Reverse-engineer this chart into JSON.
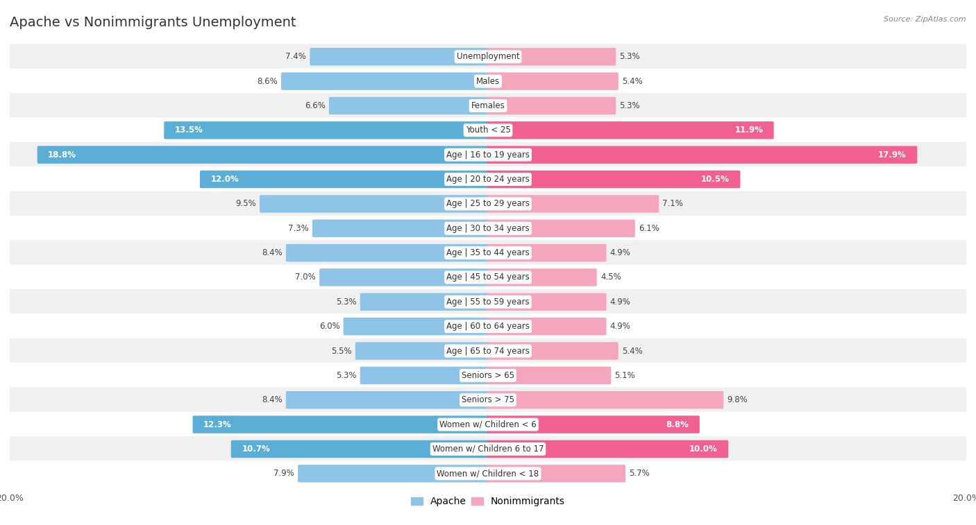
{
  "title": "Apache vs Nonimmigrants Unemployment",
  "source": "Source: ZipAtlas.com",
  "categories": [
    "Unemployment",
    "Males",
    "Females",
    "Youth < 25",
    "Age | 16 to 19 years",
    "Age | 20 to 24 years",
    "Age | 25 to 29 years",
    "Age | 30 to 34 years",
    "Age | 35 to 44 years",
    "Age | 45 to 54 years",
    "Age | 55 to 59 years",
    "Age | 60 to 64 years",
    "Age | 65 to 74 years",
    "Seniors > 65",
    "Seniors > 75",
    "Women w/ Children < 6",
    "Women w/ Children 6 to 17",
    "Women w/ Children < 18"
  ],
  "apache_values": [
    7.4,
    8.6,
    6.6,
    13.5,
    18.8,
    12.0,
    9.5,
    7.3,
    8.4,
    7.0,
    5.3,
    6.0,
    5.5,
    5.3,
    8.4,
    12.3,
    10.7,
    7.9
  ],
  "nonimmigrant_values": [
    5.3,
    5.4,
    5.3,
    11.9,
    17.9,
    10.5,
    7.1,
    6.1,
    4.9,
    4.5,
    4.9,
    4.9,
    5.4,
    5.1,
    9.8,
    8.8,
    10.0,
    5.7
  ],
  "apache_color": "#8ec4e8",
  "nonimmigrant_color": "#f4a7bc",
  "highlight_apache_color": "#5bafd6",
  "highlight_nonimmigrant_color": "#f06090",
  "highlight_rows": [
    3,
    4,
    5,
    15,
    16
  ],
  "axis_limit": 20.0,
  "bar_height": 0.62,
  "bg_color": "#ffffff",
  "row_color_even": "#f0f0f0",
  "row_color_odd": "#ffffff",
  "legend_labels": [
    "Apache",
    "Nonimmigrants"
  ],
  "title_fontsize": 14,
  "label_fontsize": 8.5,
  "cat_fontsize": 8.5
}
